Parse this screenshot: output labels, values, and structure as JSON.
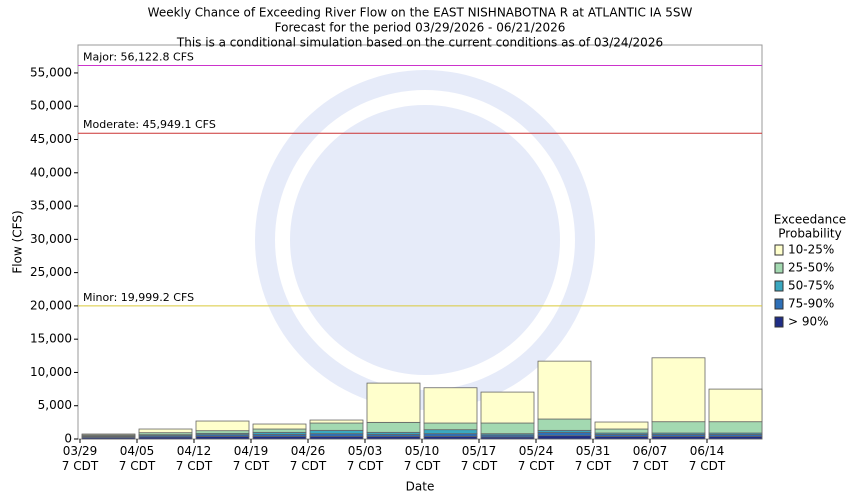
{
  "chart_data": {
    "type": "stacked-bar",
    "title": [
      "Weekly Chance of Exceeding River Flow on the EAST NISHNABOTNA R at ATLANTIC IA 5SW",
      "Forecast for the period 03/29/2026 - 06/21/2026",
      "This is a conditional simulation based on the current conditions as of 03/24/2026"
    ],
    "x_label": "Date",
    "y_label": "Flow (CFS)",
    "legend_title": [
      "Exceedance",
      "Probability"
    ],
    "categories": [
      [
        "03/29",
        "7 CDT"
      ],
      [
        "04/05",
        "7 CDT"
      ],
      [
        "04/12",
        "7 CDT"
      ],
      [
        "04/19",
        "7 CDT"
      ],
      [
        "04/26",
        "7 CDT"
      ],
      [
        "05/03",
        "7 CDT"
      ],
      [
        "05/10",
        "7 CDT"
      ],
      [
        "05/17",
        "7 CDT"
      ],
      [
        "05/24",
        "7 CDT"
      ],
      [
        "05/31",
        "7 CDT"
      ],
      [
        "06/07",
        "7 CDT"
      ],
      [
        "06/14",
        "7 CDT"
      ]
    ],
    "series": [
      {
        "name": "> 90%",
        "color": "#1f2d86",
        "values": [
          200,
          300,
          400,
          400,
          400,
          400,
          400,
          300,
          500,
          400,
          400,
          400
        ]
      },
      {
        "name": "75-90%",
        "color": "#2d6fb7",
        "values": [
          150,
          200,
          250,
          300,
          400,
          300,
          400,
          300,
          500,
          300,
          300,
          300
        ]
      },
      {
        "name": "50-75%",
        "color": "#3aa8c0",
        "values": [
          100,
          150,
          200,
          300,
          500,
          300,
          600,
          200,
          300,
          200,
          200,
          200
        ]
      },
      {
        "name": "25-50%",
        "color": "#a3d9b1",
        "values": [
          150,
          300,
          400,
          500,
          1100,
          1500,
          1000,
          1600,
          1700,
          600,
          1700,
          1700
        ]
      },
      {
        "name": "10-25%",
        "color": "#ffffcc",
        "values": [
          150,
          550,
          1450,
          750,
          450,
          5900,
          5300,
          4650,
          8700,
          1050,
          9600,
          4900
        ]
      }
    ],
    "thresholds": [
      {
        "label": "Major: 56,122.8 CFS",
        "value": 56122.8,
        "color": "#cc33cc"
      },
      {
        "label": "Moderate: 45,949.1 CFS",
        "value": 45949.1,
        "color": "#cc3333"
      },
      {
        "label": "Minor: 19,999.2 CFS",
        "value": 19999.2,
        "color": "#d9c93a"
      }
    ],
    "ylim": [
      0,
      59200
    ],
    "yticks": [
      0,
      {
        "value": 5000,
        "label": "5,000"
      },
      {
        "value": 10000,
        "label": "10,000"
      },
      {
        "value": 15000,
        "label": "15,000"
      },
      {
        "value": 20000,
        "label": "20,000"
      },
      {
        "value": 25000,
        "label": "25,000"
      },
      {
        "value": 30000,
        "label": "30,000"
      },
      {
        "value": 35000,
        "label": "35,000"
      },
      {
        "value": 40000,
        "label": "40,000"
      },
      {
        "value": 45000,
        "label": "45,000"
      },
      {
        "value": 50000,
        "label": "50,000"
      },
      {
        "value": 55000,
        "label": "55,000"
      }
    ]
  }
}
